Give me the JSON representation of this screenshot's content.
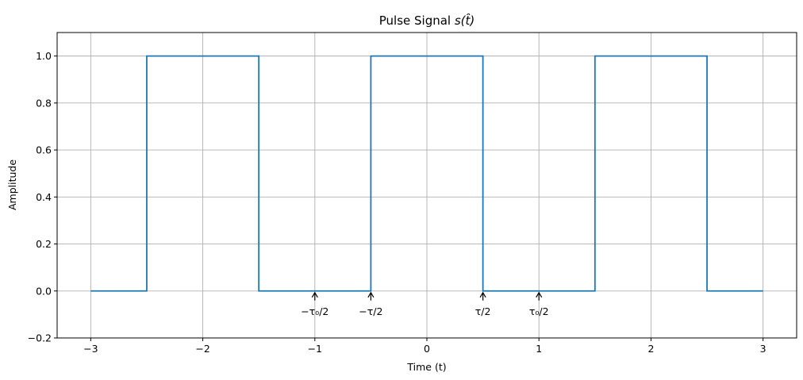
{
  "chart_data": {
    "type": "line",
    "title_main": "Pulse Signal ",
    "title_math": "s(t̂)",
    "xlabel": "Time (t)",
    "ylabel": "Amplitude",
    "xlim": [
      -3.3,
      3.3
    ],
    "ylim": [
      -0.2,
      1.1
    ],
    "grid": true,
    "x_ticks": [
      -3,
      -2,
      -1,
      0,
      1,
      2,
      3
    ],
    "x_tick_labels": [
      "−3",
      "−2",
      "−1",
      "0",
      "1",
      "2",
      "3"
    ],
    "y_ticks": [
      -0.2,
      0.0,
      0.2,
      0.4,
      0.6,
      0.8,
      1.0
    ],
    "y_tick_labels": [
      "−0.2",
      "0.0",
      "0.2",
      "0.4",
      "0.6",
      "0.8",
      "1.0"
    ],
    "series": [
      {
        "color": "#1f77b4",
        "x": [
          -3,
          -2.5,
          -2.5,
          -1.5,
          -1.5,
          -0.5,
          -0.5,
          0.5,
          0.5,
          1.5,
          1.5,
          2.5,
          2.5,
          3
        ],
        "y": [
          0,
          0,
          1,
          1,
          0,
          0,
          1,
          1,
          0,
          0,
          1,
          1,
          0,
          0
        ]
      }
    ],
    "annotations": [
      {
        "x": -1.0,
        "y": 0,
        "label": "−τ₀/2"
      },
      {
        "x": -0.5,
        "y": 0,
        "label": "−τ/2"
      },
      {
        "x": 0.5,
        "y": 0,
        "label": "τ/2"
      },
      {
        "x": 1.0,
        "y": 0,
        "label": "τ₀/2"
      }
    ]
  }
}
